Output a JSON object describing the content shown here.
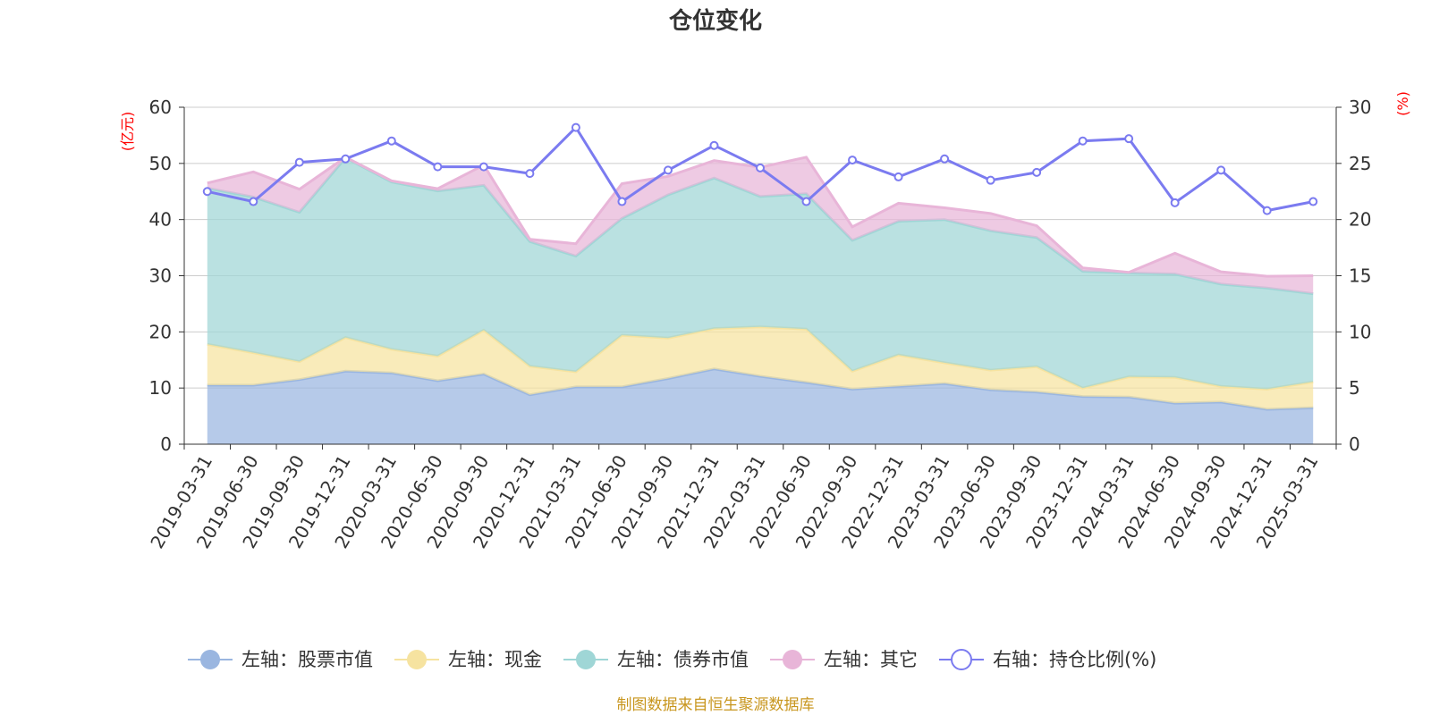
{
  "chart_data": {
    "type": "area",
    "title": "仓位变化",
    "left_axis_unit": "(亿元)",
    "right_axis_unit": "(%)",
    "left_ylim": [
      0,
      60
    ],
    "right_ylim": [
      0,
      30
    ],
    "left_ticks": [
      0,
      10,
      20,
      30,
      40,
      50,
      60
    ],
    "right_ticks": [
      0,
      5,
      10,
      15,
      20,
      25,
      30
    ],
    "categories": [
      "2019-03-31",
      "2019-06-30",
      "2019-09-30",
      "2019-12-31",
      "2020-03-31",
      "2020-06-30",
      "2020-09-30",
      "2020-12-31",
      "2021-03-31",
      "2021-06-30",
      "2021-09-30",
      "2021-12-31",
      "2022-03-31",
      "2022-06-30",
      "2022-09-30",
      "2022-12-31",
      "2023-03-31",
      "2023-06-30",
      "2023-09-30",
      "2023-12-31",
      "2024-03-31",
      "2024-06-30",
      "2024-09-30",
      "2024-12-31",
      "2025-03-31"
    ],
    "stacked_series": [
      {
        "name": "左轴：股票市值",
        "axis": "left",
        "color": "#9ab6e0",
        "values": [
          10.5,
          10.5,
          11.5,
          13.0,
          12.7,
          11.3,
          12.5,
          8.8,
          10.2,
          10.2,
          11.7,
          13.4,
          12.1,
          11.0,
          9.8,
          10.3,
          10.8,
          9.7,
          9.3,
          8.5,
          8.4,
          7.3,
          7.5,
          6.2,
          6.5
        ]
      },
      {
        "name": "左轴：现金",
        "axis": "left",
        "color": "#f6e3a0",
        "values": [
          7.3,
          5.8,
          3.2,
          6.0,
          4.2,
          4.4,
          7.8,
          5.1,
          2.7,
          9.2,
          7.2,
          7.2,
          8.8,
          9.5,
          3.2,
          5.6,
          3.7,
          3.5,
          4.5,
          1.5,
          3.6,
          4.6,
          2.8,
          3.6,
          4.6
        ]
      },
      {
        "name": "左轴：债券市值",
        "axis": "left",
        "color": "#9fd6d6",
        "values": [
          27.8,
          27.7,
          26.6,
          32.0,
          29.8,
          29.4,
          25.8,
          22.2,
          20.6,
          20.8,
          25.5,
          26.8,
          23.2,
          24.1,
          23.3,
          23.8,
          25.5,
          24.8,
          23.0,
          20.8,
          18.5,
          18.4,
          18.2,
          18.0,
          15.7
        ]
      },
      {
        "name": "左轴：其它",
        "axis": "left",
        "color": "#e8b5d8",
        "values": [
          0.9,
          4.5,
          4.1,
          0.1,
          0.2,
          0.4,
          3.6,
          0.4,
          2.2,
          6.2,
          3.3,
          3.1,
          5.2,
          6.5,
          2.4,
          3.2,
          2.1,
          3.1,
          2.1,
          0.6,
          0.1,
          3.7,
          2.2,
          2.1,
          3.2
        ]
      }
    ],
    "line_series": {
      "name": "右轴：持仓比例(%)",
      "axis": "right",
      "color": "#7b7bf0",
      "values": [
        22.5,
        21.6,
        25.1,
        25.4,
        27.0,
        24.7,
        24.7,
        24.1,
        28.2,
        21.6,
        24.4,
        26.6,
        24.6,
        21.6,
        25.3,
        23.8,
        25.4,
        23.5,
        24.2,
        27.0,
        27.2,
        21.5,
        24.4,
        20.8,
        21.6
      ]
    },
    "source_note": "制图数据来自恒生聚源数据库"
  }
}
